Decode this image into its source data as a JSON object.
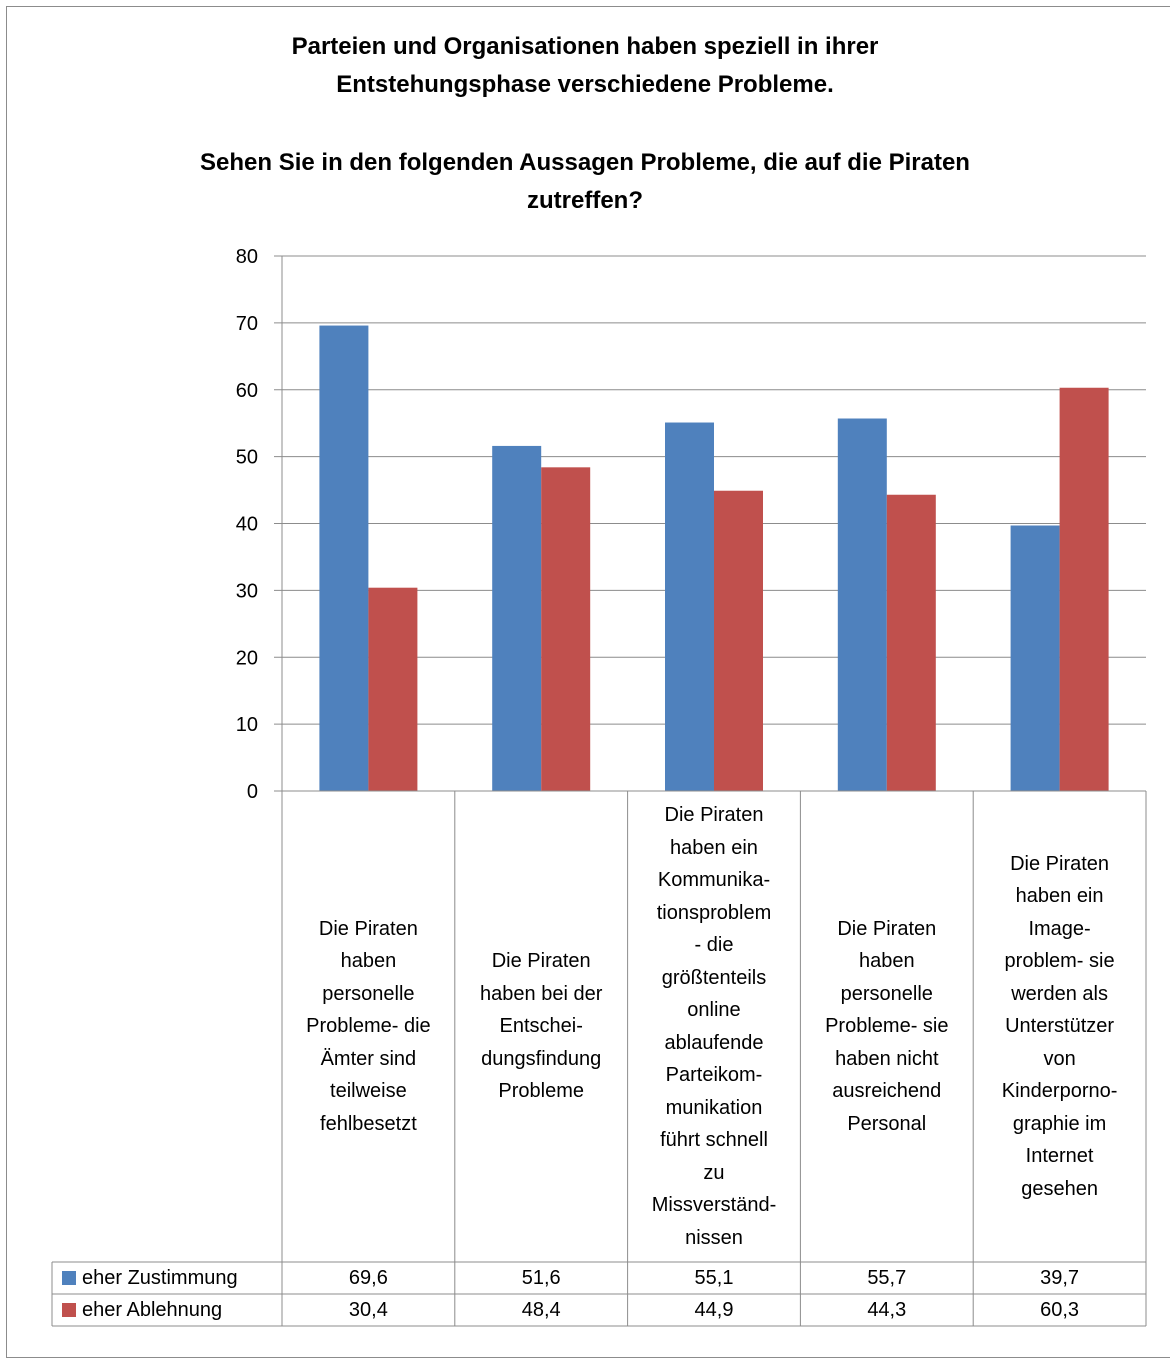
{
  "chart_data": {
    "type": "bar",
    "title": "Parteien und Organisationen haben speziell in ihrer Entstehungsphase verschiedene Probleme.",
    "title_lines": [
      "Parteien und Organisationen haben speziell in ihrer",
      "Entstehungsphase verschiedene Probleme."
    ],
    "subtitle": "Sehen Sie in den folgenden Aussagen Probleme, die auf die Piraten zutreffen?",
    "subtitle_lines": [
      "Sehen Sie in den folgenden Aussagen Probleme, die auf die Piraten",
      "zutreffen?"
    ],
    "xlabel": "",
    "ylabel": "",
    "ylim": [
      0,
      80
    ],
    "yticks": [
      0,
      10,
      20,
      30,
      40,
      50,
      60,
      70,
      80
    ],
    "grid": true,
    "legend": "data-table",
    "categories": [
      "Die Piraten haben personelle Probleme- die Ämter sind teilweise fehlbesetzt",
      "Die Piraten haben bei der Entschei- dungsfindung Probleme",
      "Die Piraten haben ein Kommunika- tionsproblem - die größtenteils online ablaufende Parteikom- munikation führt schnell zu Missverständ- nissen",
      "Die Piraten haben personelle Probleme- sie haben nicht ausreichend Personal",
      "Die Piraten haben ein Image- problem- sie werden als Unterstützer von Kinderporno- graphie im Internet gesehen"
    ],
    "category_lines": [
      [
        "Die Piraten",
        "haben",
        "personelle",
        "Probleme- die",
        "Ämter sind",
        "teilweise",
        "fehlbesetzt"
      ],
      [
        "Die Piraten",
        "haben bei der",
        "Entschei-",
        "dungsfindung",
        "Probleme"
      ],
      [
        "Die Piraten",
        "haben ein",
        "Kommunika-",
        "tionsproblem",
        "- die",
        "größtenteils",
        "online",
        "ablaufende",
        "Parteikom-",
        "munikation",
        "führt schnell",
        "zu",
        "Missverständ-",
        "nissen"
      ],
      [
        "Die Piraten",
        "haben",
        "personelle",
        "Probleme- sie",
        "haben nicht",
        "ausreichend",
        "Personal"
      ],
      [
        "Die Piraten",
        "haben ein",
        "Image-",
        "problem- sie",
        "werden als",
        "Unterstützer",
        "von",
        "Kinderporno-",
        "graphie im",
        "Internet",
        "gesehen"
      ]
    ],
    "series": [
      {
        "name": "eher Zustimmung",
        "color": "#4f81bd",
        "values": [
          69.6,
          51.6,
          55.1,
          55.7,
          39.7
        ],
        "labels": [
          "69,6",
          "51,6",
          "55,1",
          "55,7",
          "39,7"
        ]
      },
      {
        "name": "eher Ablehnung",
        "color": "#c0504d",
        "values": [
          30.4,
          48.4,
          44.9,
          44.3,
          60.3
        ],
        "labels": [
          "30,4",
          "48,4",
          "44,9",
          "44,3",
          "60,3"
        ]
      }
    ]
  }
}
